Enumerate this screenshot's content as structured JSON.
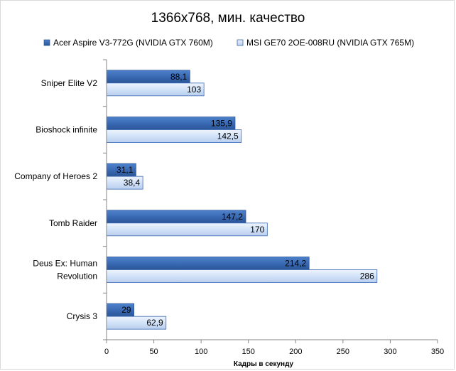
{
  "chart_data": {
    "type": "bar",
    "orientation": "horizontal",
    "title": "1366x768, мин. качество",
    "xlabel": "Кадры  в секунду",
    "ylabel": "",
    "xlim": [
      0,
      350
    ],
    "x_ticks": [
      0,
      50,
      100,
      150,
      200,
      250,
      300,
      350
    ],
    "legend_position": "top",
    "grid": false,
    "categories": [
      [
        "Sniper Elite V2"
      ],
      [
        "Bioshock infinite"
      ],
      [
        "Company of Heroes 2"
      ],
      [
        "Tomb Raider"
      ],
      [
        "Deus Ex: Human",
        "Revolution"
      ],
      [
        "Crysis 3"
      ]
    ],
    "series": [
      {
        "name": "Acer Aspire V3-772G (NVIDIA GTX 760M)",
        "color": "#3a6ab4",
        "values": [
          88.1,
          135.9,
          31.1,
          147.2,
          214.2,
          29
        ],
        "labels": [
          "88,1",
          "135,9",
          "31,1",
          "147,2",
          "214,2",
          "29"
        ]
      },
      {
        "name": "MSI GE70 2OE-008RU (NVIDIA GTX 765M)",
        "color": "#c9dcf7",
        "values": [
          103,
          142.5,
          38.4,
          170,
          286,
          62.9
        ],
        "labels": [
          "103",
          "142,5",
          "38,4",
          "170",
          "286",
          "62,9"
        ]
      }
    ]
  }
}
